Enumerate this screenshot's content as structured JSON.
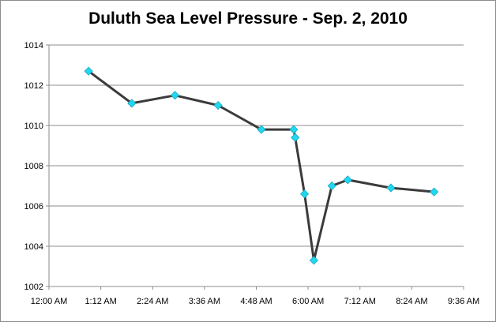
{
  "chart_data": {
    "type": "line",
    "title": "Duluth Sea Level Pressure - Sep. 2, 2010",
    "xlabel": "",
    "ylabel": "",
    "ylim": [
      1002,
      1014
    ],
    "yticks": [
      "1002",
      "1004",
      "1006",
      "1008",
      "1010",
      "1012",
      "1014"
    ],
    "xlim": [
      "12:00 AM",
      "9:36 AM"
    ],
    "xticks": [
      "12:00 AM",
      "1:12 AM",
      "2:24 AM",
      "3:36 AM",
      "4:48 AM",
      "6:00 AM",
      "7:12 AM",
      "8:24 AM",
      "9:36 AM"
    ],
    "grid": "horizontal",
    "legend": "none",
    "series": [
      {
        "color": "#3b3b3b",
        "marker_color": "#1fd8f0",
        "marker": "diamond",
        "points": [
          {
            "x": "12:55 AM",
            "y": 1012.7
          },
          {
            "x": "1:55 AM",
            "y": 1011.1
          },
          {
            "x": "2:55 AM",
            "y": 1011.5
          },
          {
            "x": "3:55 AM",
            "y": 1011.0
          },
          {
            "x": "4:55 AM",
            "y": 1009.8
          },
          {
            "x": "5:40 AM",
            "y": 1009.8
          },
          {
            "x": "5:42 AM",
            "y": 1009.4
          },
          {
            "x": "5:55 AM",
            "y": 1006.6
          },
          {
            "x": "6:08 AM",
            "y": 1003.3
          },
          {
            "x": "6:33 AM",
            "y": 1007.0
          },
          {
            "x": "6:55 AM",
            "y": 1007.3
          },
          {
            "x": "7:55 AM",
            "y": 1006.9
          },
          {
            "x": "8:55 AM",
            "y": 1006.7
          }
        ]
      }
    ]
  }
}
